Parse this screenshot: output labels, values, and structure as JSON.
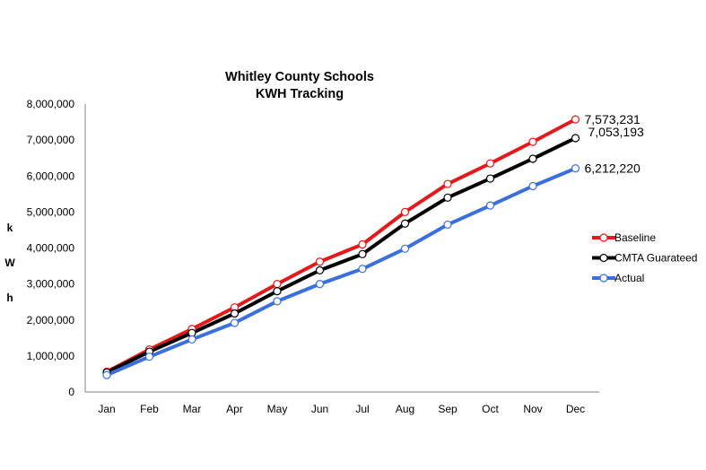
{
  "chart_data": {
    "type": "line",
    "title": "Whitley County Schools",
    "subtitle": "KWH Tracking",
    "ylabel": "kWh",
    "ylabel_chars": [
      "k",
      "W",
      "h"
    ],
    "xlabel": "",
    "ylim": [
      0,
      8000000
    ],
    "yticks": [
      "0",
      "1,000,000",
      "2,000,000",
      "3,000,000",
      "4,000,000",
      "5,000,000",
      "6,000,000",
      "7,000,000",
      "8,000,000"
    ],
    "categories": [
      "Jan",
      "Feb",
      "Mar",
      "Apr",
      "May",
      "Jun",
      "Jul",
      "Aug",
      "Sep",
      "Oct",
      "Nov",
      "Dec"
    ],
    "grid": false,
    "legend_position": "right",
    "series": [
      {
        "name": "Baseline",
        "color": "#e31a1c",
        "values": [
          560000,
          1180000,
          1750000,
          2350000,
          3000000,
          3620000,
          4100000,
          5000000,
          5780000,
          6350000,
          6950000,
          7573231
        ],
        "end_label": "7,573,231"
      },
      {
        "name": "CMTA Guarateed",
        "color": "#000000",
        "values": [
          540000,
          1120000,
          1640000,
          2180000,
          2800000,
          3380000,
          3830000,
          4680000,
          5400000,
          5930000,
          6480000,
          7053193
        ],
        "end_label": "7,053,193"
      },
      {
        "name": "Actual",
        "color": "#3b6fdc",
        "values": [
          470000,
          980000,
          1460000,
          1920000,
          2520000,
          3000000,
          3420000,
          3980000,
          4650000,
          5180000,
          5720000,
          6212220
        ],
        "end_label": "6,212,220"
      }
    ]
  }
}
